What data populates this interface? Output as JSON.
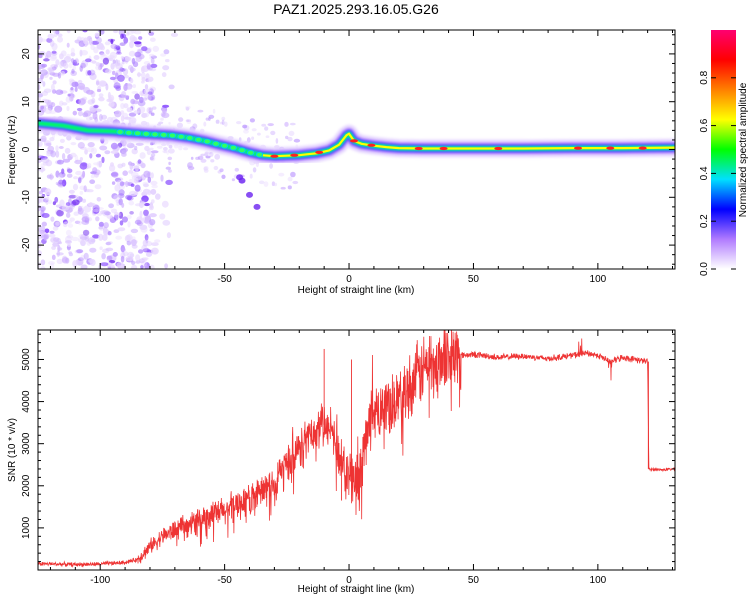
{
  "figure": {
    "title": "PAZ1.2025.293.16.05.G26"
  },
  "chart_data": [
    {
      "type": "heatmap",
      "xlabel": "Height of straight line (km)",
      "ylabel": "Frequency (Hz)",
      "xlim": [
        -125,
        131
      ],
      "ylim": [
        -25,
        25
      ],
      "xticks": [
        -100,
        -50,
        0,
        50,
        100
      ],
      "yticks": [
        -20,
        -10,
        0,
        10,
        20
      ],
      "ridge": [
        [
          -125,
          5.5
        ],
        [
          -115,
          5
        ],
        [
          -105,
          4
        ],
        [
          -95,
          3.8
        ],
        [
          -88,
          3.5
        ],
        [
          -80,
          3.2
        ],
        [
          -72,
          3
        ],
        [
          -65,
          2.5
        ],
        [
          -58,
          1.8
        ],
        [
          -52,
          1
        ],
        [
          -46,
          0.3
        ],
        [
          -40,
          -0.6
        ],
        [
          -35,
          -1.2
        ],
        [
          -30,
          -1.4
        ],
        [
          -25,
          -1.3
        ],
        [
          -20,
          -1.2
        ],
        [
          -17,
          -1.0
        ],
        [
          -13,
          -0.8
        ],
        [
          -8,
          -0.2
        ],
        [
          -4,
          1.0
        ],
        [
          -1,
          3
        ],
        [
          0,
          3.3
        ],
        [
          2,
          1.8
        ],
        [
          5,
          1.2
        ],
        [
          10,
          0.8
        ],
        [
          15,
          0.5
        ],
        [
          20,
          0.3
        ],
        [
          30,
          0.2
        ],
        [
          50,
          0.2
        ],
        [
          70,
          0.2
        ],
        [
          90,
          0.3
        ],
        [
          100,
          0.3
        ],
        [
          110,
          0.3
        ],
        [
          131,
          0.4
        ]
      ],
      "colorbar": {
        "label": "Normalized spectral amplitude",
        "range": [
          0,
          1
        ],
        "ticks": [
          "0.0",
          "0.2",
          "0.4",
          "0.6",
          "0.8"
        ],
        "colors": [
          "#ffffff",
          "#b07aff",
          "#0000ff",
          "#00e0ff",
          "#00ff00",
          "#ffff00",
          "#ff8000",
          "#ff0000",
          "#ff0070"
        ]
      }
    },
    {
      "type": "line",
      "xlabel": "Height of straight line (km)",
      "ylabel": "SNR (10 * v/v)",
      "xlim": [
        -125,
        131
      ],
      "ylim": [
        0,
        5700
      ],
      "xticks": [
        -100,
        -50,
        0,
        50,
        100
      ],
      "yticks": [
        1000,
        2000,
        3000,
        4000,
        5000
      ],
      "color": "#ee3333",
      "x": [
        -125,
        -110,
        -100,
        -90,
        -85,
        -80,
        -75,
        -70,
        -65,
        -60,
        -55,
        -50,
        -45,
        -40,
        -35,
        -30,
        -25,
        -20,
        -15,
        -10,
        -8,
        -5,
        -3,
        0,
        2,
        4,
        6,
        8,
        10,
        15,
        20,
        25,
        30,
        35,
        40,
        45,
        50,
        60,
        70,
        80,
        90,
        95,
        100,
        105,
        110,
        115,
        120,
        120.5,
        125,
        131
      ],
      "y": [
        150,
        130,
        140,
        180,
        250,
        550,
        800,
        950,
        1050,
        1200,
        1300,
        1400,
        1550,
        1700,
        1850,
        2100,
        2500,
        2850,
        3200,
        3450,
        3300,
        3000,
        2600,
        2300,
        2200,
        2000,
        2900,
        3500,
        3700,
        3900,
        4100,
        4400,
        4800,
        5000,
        5050,
        5100,
        5120,
        5050,
        5080,
        5020,
        5100,
        5150,
        5100,
        4950,
        5050,
        5000,
        4950,
        2400,
        2380,
        2400
      ]
    }
  ]
}
